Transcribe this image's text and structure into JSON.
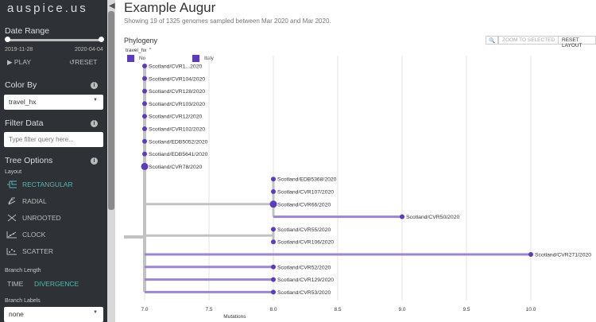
{
  "sidebar": {
    "brand": "auspice.us",
    "date_range": {
      "title": "Date Range",
      "start": "2019-11-28",
      "end": "2020-04-04",
      "play": "PLAY",
      "reset": "RESET"
    },
    "color_by": {
      "title": "Color By",
      "value": "travel_hx"
    },
    "filter": {
      "title": "Filter Data",
      "placeholder": "Type filter query here..."
    },
    "tree_options": {
      "title": "Tree Options",
      "layout_label": "Layout",
      "layouts": [
        "RECTANGULAR",
        "RADIAL",
        "UNROOTED",
        "CLOCK",
        "SCATTER"
      ],
      "active_layout": "RECTANGULAR",
      "branch_length_label": "Branch Length",
      "branch_length_options": [
        "TIME",
        "DIVERGENCE"
      ],
      "active_branch_length": "DIVERGENCE",
      "branch_labels_label": "Branch Labels",
      "branch_labels_value": "none"
    }
  },
  "main": {
    "title": "Example Augur",
    "subtitle": "Showing 19 of 1325 genomes sampled between Mar 2020 and Mar 2020.",
    "panel_title": "Phylogeny",
    "legend": {
      "label": "travel_hx",
      "items": [
        {
          "name": "No",
          "color": "#5c3cbd"
        },
        {
          "name": "Italy",
          "color": "#5c3cbd"
        }
      ]
    },
    "buttons": {
      "zoom": "ZOOM TO SELECTED",
      "reset": "RESET LAYOUT"
    }
  },
  "chart_data": {
    "type": "phylogeny-rectangular",
    "xlabel": "Mutations",
    "xlim": [
      6.85,
      10.45
    ],
    "xticks": [
      "7.0",
      "7.5",
      "8.0",
      "8.5",
      "9.0",
      "9.5",
      "10.0"
    ],
    "tip_color": "#5c3cbd",
    "tips": [
      {
        "name": "Scotland/CVR1...2020",
        "x": 7.0
      },
      {
        "name": "Scotland/CVR104/2020",
        "x": 7.0
      },
      {
        "name": "Scotland/CVR128/2020",
        "x": 7.0
      },
      {
        "name": "Scotland/CVR103/2020",
        "x": 7.0
      },
      {
        "name": "Scotland/CVR12/2020",
        "x": 7.0
      },
      {
        "name": "Scotland/CVR102/2020",
        "x": 7.0
      },
      {
        "name": "Scotland/EDB5052/2020",
        "x": 7.0
      },
      {
        "name": "Scotland/EDB5641/2020",
        "x": 7.0
      },
      {
        "name": "Scotland/CVR78/2020",
        "x": 7.0
      },
      {
        "name": "Scotland/EDB5368/2020",
        "x": 8.0
      },
      {
        "name": "Scotland/CVR107/2020",
        "x": 8.0
      },
      {
        "name": "Scotland/CVR66/2020",
        "x": 8.0
      },
      {
        "name": "Scotland/CVR50/2020",
        "x": 9.0
      },
      {
        "name": "Scotland/CVR55/2020",
        "x": 8.0
      },
      {
        "name": "Scotland/CVR106/2020",
        "x": 8.0
      },
      {
        "name": "Scotland/CVR271/2020",
        "x": 10.0
      },
      {
        "name": "Scotland/CVR52/2020",
        "x": 8.0
      },
      {
        "name": "Scotland/CVR129/2020",
        "x": 8.0
      },
      {
        "name": "Scotland/CVR53/2020",
        "x": 8.0
      }
    ]
  }
}
